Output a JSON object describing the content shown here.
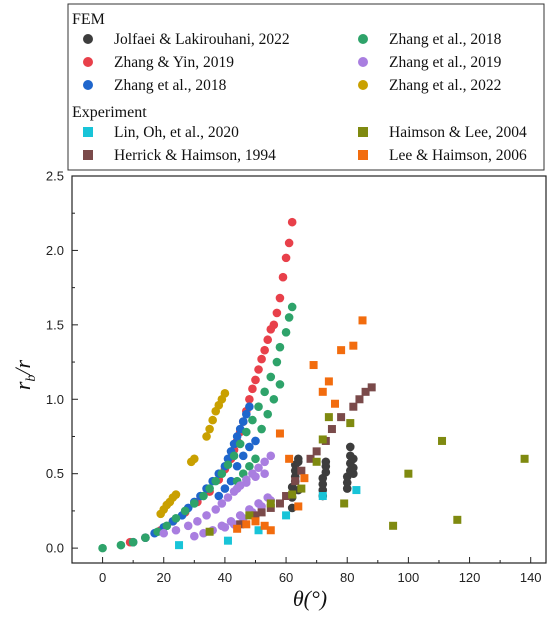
{
  "chart_data": {
    "type": "scatter",
    "title": "",
    "xlabel": "θ(°)",
    "ylabel": "r_b/r",
    "xlim": [
      -10,
      145
    ],
    "ylim": [
      -0.1,
      2.5
    ],
    "xticks": [
      0,
      20,
      40,
      60,
      80,
      100,
      120,
      140
    ],
    "yticks": [
      0.0,
      0.5,
      1.0,
      1.5,
      2.0,
      2.5
    ],
    "grid": false,
    "legend_placement": "top",
    "legend_groups": [
      {
        "heading": "FEM",
        "members": [
          "Jolfaei & Lakirouhani, 2022",
          "Zhang & Yin, 2019",
          "Zhang et al., 2018",
          "Zhang et al., 2018",
          "Zhang et al., 2019",
          "Zhang et al., 2022"
        ]
      },
      {
        "heading": "Experiment",
        "members": [
          "Lin, Oh, et al., 2020",
          "Herrick & Haimson, 1994",
          "Haimson & Lee, 2004",
          "Lee & Haimson, 2006"
        ]
      }
    ],
    "series": [
      {
        "name": "Jolfaei & Lakirouhani, 2022",
        "marker": "circle",
        "color": "#3d3d3d",
        "x": [
          62,
          62,
          62,
          63,
          63,
          63,
          63,
          64,
          64,
          64,
          72,
          72,
          72,
          72,
          73,
          73,
          73,
          80,
          80,
          80,
          81,
          81,
          81,
          81,
          82,
          82,
          82
        ],
        "y": [
          0.27,
          0.34,
          0.41,
          0.45,
          0.48,
          0.52,
          0.56,
          0.58,
          0.6,
          0.39,
          0.35,
          0.39,
          0.43,
          0.47,
          0.51,
          0.55,
          0.58,
          0.4,
          0.44,
          0.48,
          0.52,
          0.57,
          0.62,
          0.68,
          0.5,
          0.54,
          0.6
        ]
      },
      {
        "name": "Zhang & Yin, 2019",
        "marker": "circle",
        "color": "#e8404a",
        "x": [
          9,
          14,
          19,
          23,
          27,
          31,
          35,
          38,
          40,
          42,
          43,
          44,
          45,
          46,
          47,
          48,
          49,
          50,
          51,
          52,
          53,
          54,
          55,
          56,
          57,
          58,
          59,
          60,
          61,
          62
        ],
        "y": [
          0.04,
          0.07,
          0.12,
          0.18,
          0.24,
          0.31,
          0.38,
          0.46,
          0.53,
          0.6,
          0.66,
          0.72,
          0.78,
          0.85,
          0.92,
          1.0,
          1.07,
          1.13,
          1.2,
          1.27,
          1.33,
          1.4,
          1.47,
          1.5,
          1.58,
          1.68,
          1.82,
          1.95,
          2.05,
          2.19
        ]
      },
      {
        "name": "Zhang et al., 2018",
        "marker": "circle",
        "color": "#1f66cc",
        "x": [
          10,
          14,
          17,
          20,
          23,
          26,
          28,
          30,
          32,
          34,
          36,
          38,
          40,
          41,
          42,
          43,
          44,
          45,
          46,
          47,
          48,
          38,
          40,
          42,
          44,
          46,
          48,
          50
        ],
        "y": [
          0.04,
          0.07,
          0.1,
          0.14,
          0.18,
          0.22,
          0.27,
          0.31,
          0.35,
          0.4,
          0.45,
          0.5,
          0.55,
          0.6,
          0.65,
          0.7,
          0.75,
          0.8,
          0.85,
          0.9,
          0.95,
          0.35,
          0.4,
          0.45,
          0.55,
          0.62,
          0.68,
          0.72
        ]
      },
      {
        "name": "Zhang et al., 2018",
        "marker": "circle",
        "color": "#2ea36a",
        "x": [
          0,
          6,
          10,
          14,
          18,
          21,
          24,
          27,
          30,
          33,
          35,
          37,
          39,
          41,
          43,
          45,
          47,
          49,
          51,
          53,
          55,
          57,
          58,
          60,
          61,
          62,
          44,
          46,
          48,
          50,
          52,
          54,
          56,
          58
        ],
        "y": [
          0.0,
          0.02,
          0.04,
          0.07,
          0.11,
          0.15,
          0.2,
          0.25,
          0.3,
          0.35,
          0.4,
          0.45,
          0.5,
          0.56,
          0.62,
          0.7,
          0.78,
          0.86,
          0.95,
          1.05,
          1.15,
          1.25,
          1.35,
          1.45,
          1.55,
          1.62,
          0.45,
          0.5,
          0.55,
          0.6,
          0.8,
          0.9,
          1.0,
          1.1
        ]
      },
      {
        "name": "Zhang et al., 2019",
        "marker": "circle",
        "color": "#a97ee0",
        "x": [
          20,
          24,
          28,
          31,
          34,
          37,
          39,
          41,
          43,
          45,
          47,
          49,
          51,
          53,
          55,
          30,
          33,
          36,
          39,
          42,
          45,
          48,
          51,
          54,
          40,
          43,
          46,
          49,
          52,
          55,
          44,
          47,
          50,
          53
        ],
        "y": [
          0.1,
          0.12,
          0.15,
          0.18,
          0.22,
          0.26,
          0.3,
          0.34,
          0.38,
          0.42,
          0.46,
          0.5,
          0.54,
          0.58,
          0.62,
          0.08,
          0.1,
          0.12,
          0.15,
          0.18,
          0.22,
          0.26,
          0.3,
          0.34,
          0.14,
          0.16,
          0.2,
          0.24,
          0.28,
          0.32,
          0.4,
          0.44,
          0.48,
          0.5
        ]
      },
      {
        "name": "Zhang et al., 2022",
        "marker": "circle",
        "color": "#c9a000",
        "x": [
          19,
          20,
          21,
          22,
          23,
          24,
          29,
          30,
          34,
          35,
          36,
          37,
          38,
          39,
          40
        ],
        "y": [
          0.23,
          0.26,
          0.29,
          0.31,
          0.34,
          0.36,
          0.58,
          0.6,
          0.75,
          0.8,
          0.86,
          0.92,
          0.96,
          1.0,
          1.04
        ]
      },
      {
        "name": "Lin, Oh, et al., 2020",
        "marker": "square",
        "color": "#18c4d8",
        "x": [
          25,
          41,
          51,
          60,
          72,
          83
        ],
        "y": [
          0.02,
          0.05,
          0.12,
          0.22,
          0.35,
          0.39
        ]
      },
      {
        "name": "Herrick & Haimson, 1994",
        "marker": "square",
        "color": "#7a4a4a",
        "x": [
          45,
          50,
          52,
          55,
          58,
          60,
          63,
          65,
          68,
          70,
          73,
          75,
          78,
          82,
          84,
          86,
          88
        ],
        "y": [
          0.16,
          0.22,
          0.24,
          0.27,
          0.3,
          0.35,
          0.45,
          0.52,
          0.6,
          0.65,
          0.72,
          0.8,
          0.88,
          0.95,
          1.0,
          1.05,
          1.08
        ]
      },
      {
        "name": "Haimson & Lee, 2004",
        "marker": "square",
        "color": "#7f8a10",
        "x": [
          35,
          48,
          55,
          62,
          65,
          70,
          72,
          74,
          79,
          81,
          95,
          100,
          111,
          116,
          138
        ],
        "y": [
          0.11,
          0.22,
          0.3,
          0.36,
          0.4,
          0.58,
          0.73,
          0.88,
          0.3,
          0.84,
          0.15,
          0.5,
          0.72,
          0.19,
          0.6
        ]
      },
      {
        "name": "Lee & Haimson, 2006",
        "marker": "square",
        "color": "#f26c0e",
        "x": [
          44,
          47,
          50,
          53,
          55,
          58,
          61,
          64,
          66,
          69,
          72,
          74,
          76,
          78,
          82,
          85
        ],
        "y": [
          0.13,
          0.16,
          0.18,
          0.15,
          0.12,
          0.77,
          0.6,
          0.28,
          0.47,
          1.23,
          1.05,
          1.12,
          0.97,
          1.33,
          1.36,
          1.53
        ]
      }
    ]
  }
}
